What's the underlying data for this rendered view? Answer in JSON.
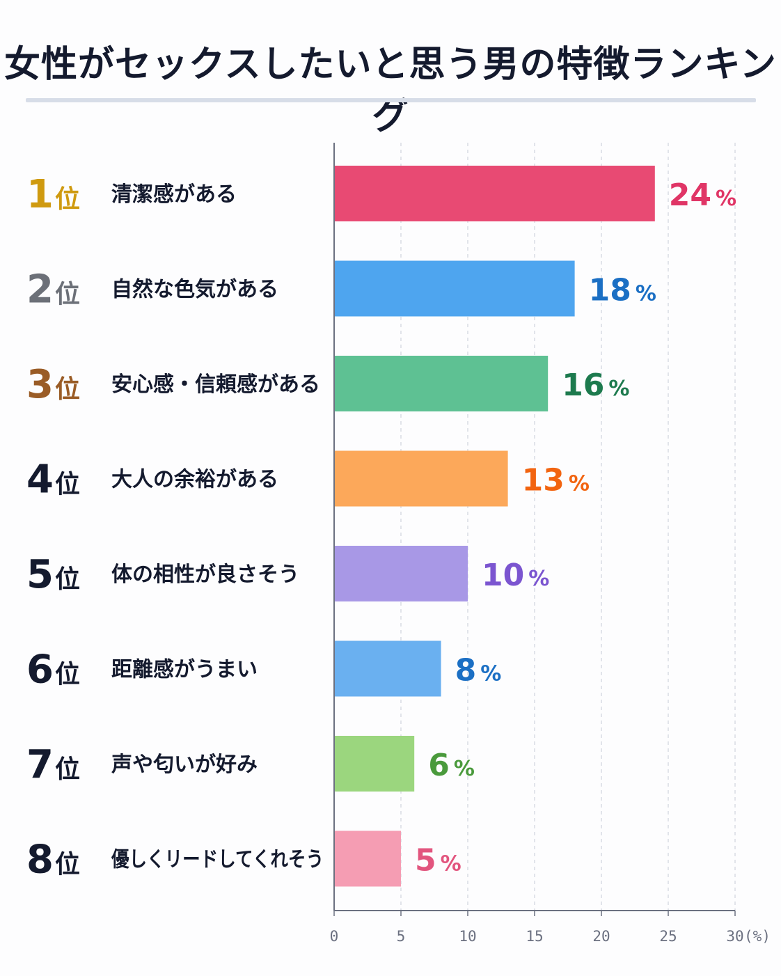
{
  "title": "女性がセックスしたいと思う男の特徴ランキング",
  "rank_suffix": "位",
  "value_suffix": "%",
  "axis_unit": "(%)",
  "chart_data": {
    "type": "bar",
    "orientation": "horizontal",
    "title": "女性がセックスしたいと思う男の特徴ランキング",
    "categories": [
      "清潔感がある",
      "自然な色気がある",
      "安心感・信頼感がある",
      "大人の余裕がある",
      "体の相性が良さそう",
      "距離感がうまい",
      "声や匂いが好み",
      "優しくリードしてくれそう"
    ],
    "ranks": [
      "1",
      "2",
      "3",
      "4",
      "5",
      "6",
      "7",
      "8"
    ],
    "values": [
      24,
      18,
      16,
      13,
      10,
      8,
      6,
      5
    ],
    "xlabel": "(%)",
    "ylabel": "",
    "xlim": [
      0,
      30
    ],
    "xticks": [
      "0",
      "5",
      "10",
      "15",
      "20",
      "25",
      "30"
    ],
    "grid": true,
    "bar_colors": [
      "#e84a73",
      "#4ea5ef",
      "#5ec193",
      "#fca85a",
      "#a898e6",
      "#6ab0f0",
      "#9bd67e",
      "#f59db3"
    ],
    "value_label_colors": [
      "#e03566",
      "#1b6fc4",
      "#1d7a4e",
      "#f26410",
      "#7b55d0",
      "#1b6fc4",
      "#4a9a3c",
      "#e2557e"
    ],
    "rank_colors": [
      "#cf9a10",
      "#6c7078",
      "#9a5c26",
      "#141a2e",
      "#141a2e",
      "#141a2e",
      "#141a2e",
      "#141a2e"
    ]
  }
}
